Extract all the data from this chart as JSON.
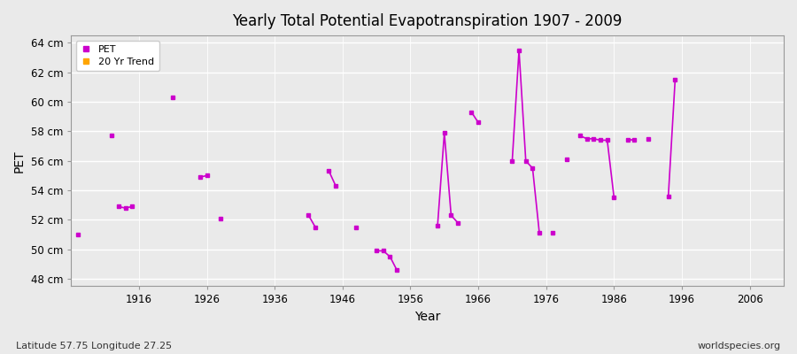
{
  "title": "Yearly Total Potential Evapotranspiration 1907 - 2009",
  "xlabel": "Year",
  "ylabel": "PET",
  "subtitle_left": "Latitude 57.75 Longitude 27.25",
  "subtitle_right": "worldspecies.org",
  "xlim": [
    1906,
    2011
  ],
  "ylim": [
    47.5,
    64.5
  ],
  "yticks": [
    48,
    50,
    52,
    54,
    56,
    58,
    60,
    62,
    64
  ],
  "ytick_labels": [
    "48 cm",
    "50 cm",
    "52 cm",
    "54 cm",
    "56 cm",
    "58 cm",
    "60 cm",
    "62 cm",
    "64 cm"
  ],
  "xticks": [
    1916,
    1926,
    1936,
    1946,
    1956,
    1966,
    1976,
    1986,
    1996,
    2006
  ],
  "pet_color": "#cc00cc",
  "trend_color": "#FFA500",
  "background_color": "#eaeaea",
  "groups": [
    [
      [
        1907,
        51.0
      ]
    ],
    [
      [
        1912,
        57.7
      ]
    ],
    [
      [
        1913,
        52.9
      ],
      [
        1914,
        52.8
      ],
      [
        1915,
        52.9
      ]
    ],
    [
      [
        1921,
        60.3
      ]
    ],
    [
      [
        1925,
        54.9
      ],
      [
        1926,
        55.0
      ]
    ],
    [
      [
        1928,
        52.1
      ]
    ],
    [
      [
        1941,
        52.3
      ],
      [
        1942,
        51.5
      ]
    ],
    [
      [
        1944,
        55.3
      ],
      [
        1945,
        54.3
      ]
    ],
    [
      [
        1948,
        51.5
      ]
    ],
    [
      [
        1951,
        49.9
      ],
      [
        1952,
        49.9
      ],
      [
        1953,
        49.5
      ],
      [
        1954,
        48.6
      ]
    ],
    [
      [
        1960,
        51.6
      ],
      [
        1961,
        57.9
      ],
      [
        1962,
        52.3
      ],
      [
        1963,
        51.8
      ]
    ],
    [
      [
        1965,
        59.3
      ],
      [
        1966,
        58.6
      ]
    ],
    [
      [
        1971,
        56.0
      ],
      [
        1972,
        63.5
      ],
      [
        1973,
        56.0
      ],
      [
        1974,
        55.5
      ],
      [
        1975,
        51.1
      ]
    ],
    [
      [
        1977,
        51.1
      ]
    ],
    [
      [
        1979,
        56.1
      ]
    ],
    [
      [
        1981,
        57.7
      ],
      [
        1982,
        57.5
      ],
      [
        1983,
        57.5
      ],
      [
        1984,
        57.4
      ],
      [
        1985,
        57.4
      ],
      [
        1986,
        53.5
      ]
    ],
    [
      [
        1988,
        57.4
      ],
      [
        1989,
        57.4
      ]
    ],
    [
      [
        1991,
        57.5
      ]
    ],
    [
      [
        1994,
        53.6
      ],
      [
        1995,
        61.5
      ]
    ]
  ]
}
